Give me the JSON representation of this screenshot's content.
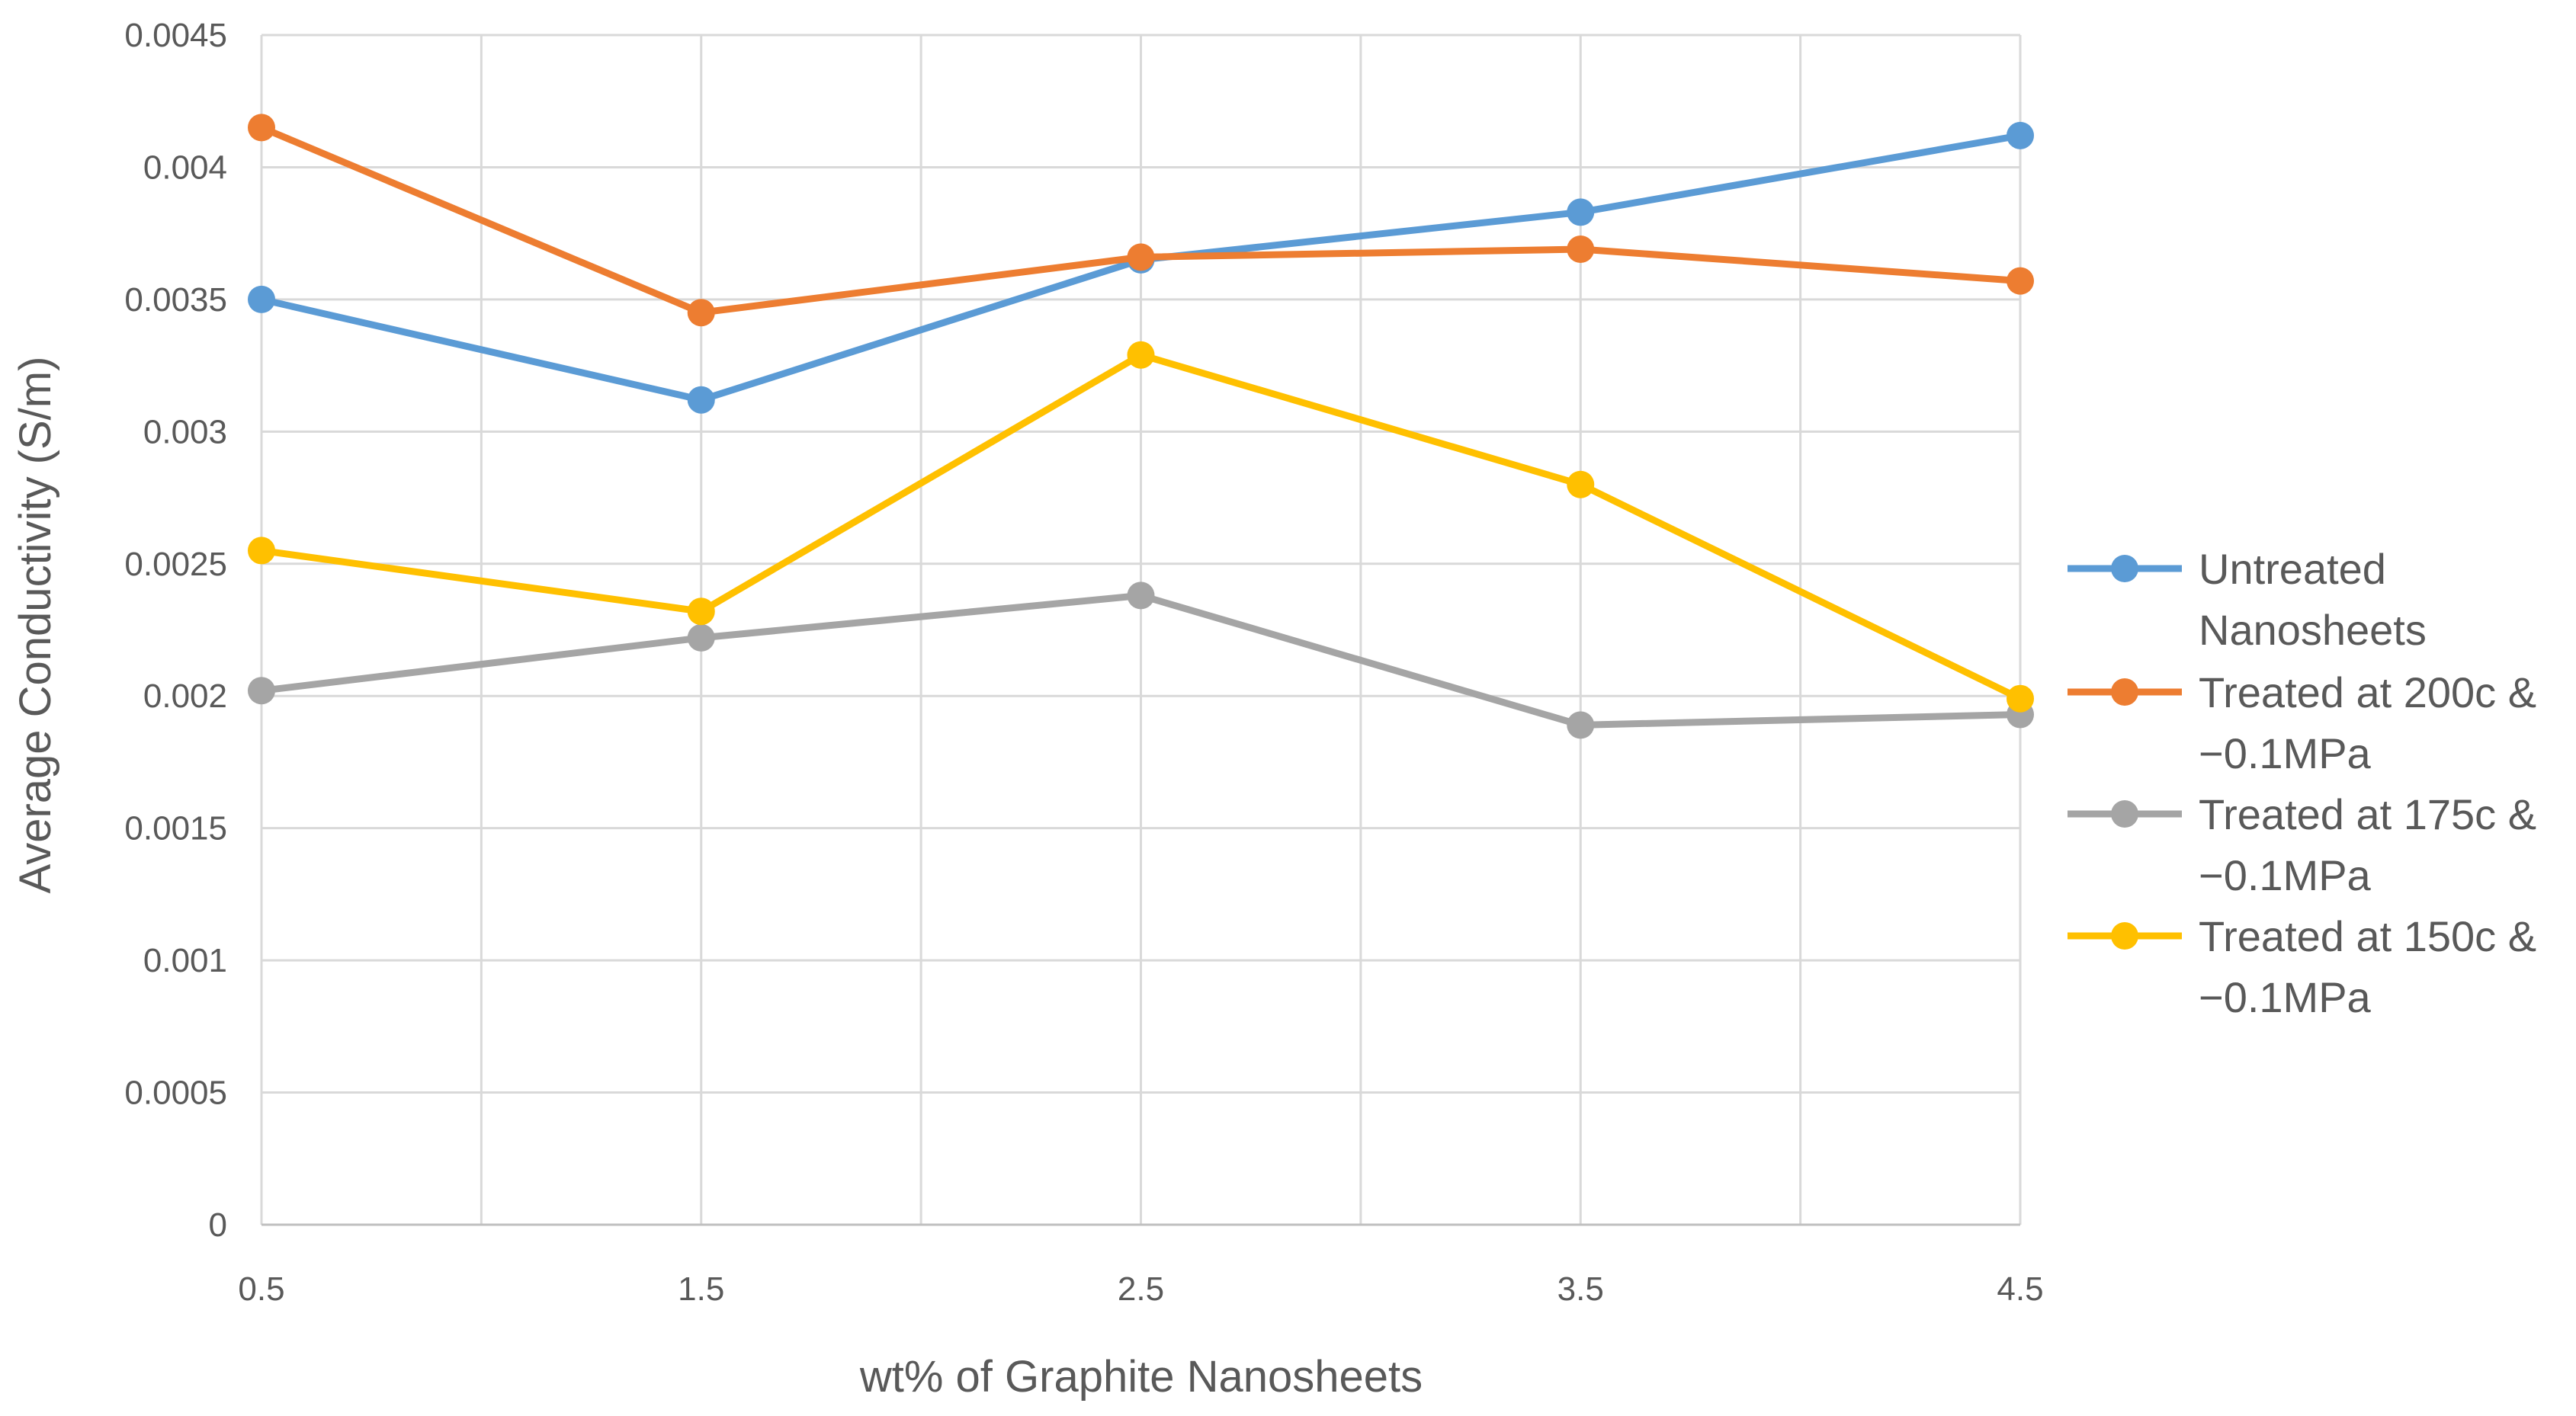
{
  "chart_data": {
    "type": "line",
    "title": "",
    "xlabel": "wt% of Graphite Nanosheets",
    "ylabel": "Average Conductivity (S/m)",
    "categories": [
      "0.5",
      "1.5",
      "2.5",
      "3.5",
      "4.5"
    ],
    "x": [
      0.5,
      1.5,
      2.5,
      3.5,
      4.5
    ],
    "xlim": [
      0.5,
      4.5
    ],
    "x_gridlines": [
      0.5,
      1.0,
      1.5,
      2.0,
      2.5,
      3.0,
      3.5,
      4.0,
      4.5
    ],
    "ylim": [
      0,
      0.0045
    ],
    "yticks": [
      0,
      0.0005,
      0.001,
      0.0015,
      0.002,
      0.0025,
      0.003,
      0.0035,
      0.004,
      0.0045
    ],
    "ytick_labels": [
      "0",
      "0.0005",
      "0.001",
      "0.0015",
      "0.002",
      "0.0025",
      "0.003",
      "0.0035",
      "0.004",
      "0.0045"
    ],
    "grid": true,
    "legend_position": "right",
    "series": [
      {
        "name": "Untreated Nanosheets",
        "legend_lines": [
          "Untreated",
          "Nanosheets"
        ],
        "color": "#5B9BD5",
        "values": [
          0.0035,
          0.00312,
          0.00365,
          0.00383,
          0.00412
        ]
      },
      {
        "name": "Treated at 200c & −0.1MPa",
        "legend_lines": [
          "Treated at 200c &",
          "−0.1MPa"
        ],
        "color": "#ED7D31",
        "values": [
          0.00415,
          0.00345,
          0.00366,
          0.00369,
          0.00357
        ]
      },
      {
        "name": "Treated at 175c & −0.1MPa",
        "legend_lines": [
          "Treated at 175c &",
          "−0.1MPa"
        ],
        "color": "#A5A5A5",
        "values": [
          0.00202,
          0.00222,
          0.00238,
          0.00189,
          0.00193
        ]
      },
      {
        "name": "Treated at 150c & −0.1MPa",
        "legend_lines": [
          "Treated at 150c &",
          "−0.1MPa"
        ],
        "color": "#FFC000",
        "values": [
          0.00255,
          0.00232,
          0.00329,
          0.0028,
          0.00199
        ]
      }
    ]
  }
}
